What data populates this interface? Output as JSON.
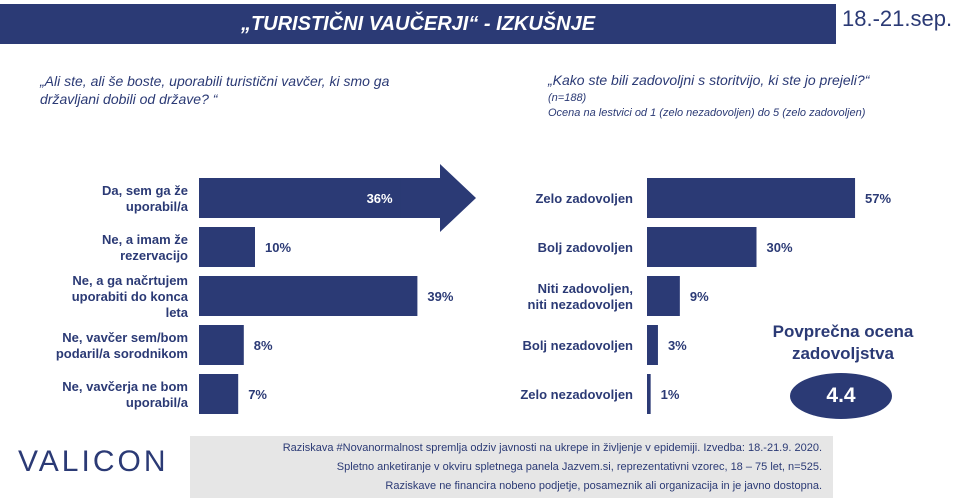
{
  "header": {
    "title": "„TURISTIČNI VAUČERJI“ - IZKUŠNJE",
    "date": "18.-21.sep."
  },
  "left_question": "„Ali ste, ali še boste, uporabili turistični vavčer, ki smo ga državljani dobili od države? “",
  "right_question": {
    "text": "„Kako ste bili zadovoljni s storitvijo, ki ste jo prejeli?“",
    "n": "(n=188)",
    "scale": "Ocena na lestvici od 1 (zelo nezadovoljen) do 5 (zelo zadovoljen)"
  },
  "average": {
    "title": "Povprečna ocena zadovoljstva",
    "value": "4.4"
  },
  "logo": "VALICON",
  "footer": {
    "line1": "Raziskava #Novanormalnost spremlja odziv javnosti na ukrepe in življenje v epidemiji. Izvedba: 18.-21.9. 2020.",
    "line2": "Spletno anketiranje v okviru spletnega panela Jazvem.si, reprezentativni vzorec, 18 – 75 let, n=525.",
    "line3": "Raziskave ne financira nobeno podjetje, posameznik ali organizacija in je javno dostopna."
  },
  "colors": {
    "bar": "#2b3a75",
    "text": "#2b3a75",
    "highlight_text": "#ffffff",
    "footer_bg": "#e6e6e6"
  },
  "chart_data": [
    {
      "type": "bar",
      "orientation": "horizontal",
      "categories": [
        "Da, sem ga že uporabil/a",
        "Ne, a imam že rezervacijo",
        "Ne, a ga načrtujem uporabiti do konca leta",
        "Ne, vavčer sem/bom podaril/a sorodnikom",
        "Ne, vavčerja ne bom uporabil/a"
      ],
      "values": [
        36,
        10,
        39,
        8,
        7
      ],
      "labels": [
        "36%",
        "10%",
        "39%",
        "8%",
        "7%"
      ],
      "unit": "%",
      "xlim": [
        0,
        45
      ]
    },
    {
      "type": "bar",
      "orientation": "horizontal",
      "categories": [
        "Zelo zadovoljen",
        "Bolj zadovoljen",
        "Niti zadovoljen, niti nezadovoljen",
        "Bolj nezadovoljen",
        "Zelo nezadovoljen"
      ],
      "values": [
        57,
        30,
        9,
        3,
        1
      ],
      "labels": [
        "57%",
        "30%",
        "9%",
        "3%",
        "1%"
      ],
      "unit": "%",
      "xlim": [
        0,
        60
      ]
    }
  ]
}
